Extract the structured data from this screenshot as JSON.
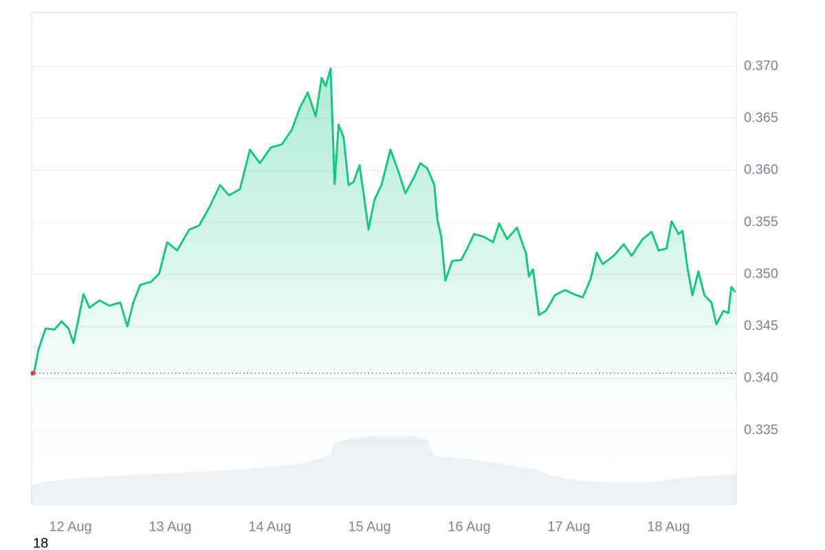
{
  "chart_data": {
    "type": "line",
    "x": [
      11.63,
      11.68,
      11.75,
      11.84,
      11.91,
      11.98,
      12.03,
      12.08,
      12.13,
      12.19,
      12.29,
      12.39,
      12.5,
      12.57,
      12.63,
      12.7,
      12.81,
      12.89,
      12.97,
      13.07,
      13.19,
      13.29,
      13.39,
      13.5,
      13.59,
      13.7,
      13.8,
      13.9,
      14.01,
      14.12,
      14.22,
      14.3,
      14.38,
      14.46,
      14.52,
      14.56,
      14.61,
      14.65,
      14.69,
      14.74,
      14.79,
      14.84,
      14.9,
      14.94,
      14.99,
      15.05,
      15.12,
      15.21,
      15.29,
      15.36,
      15.45,
      15.51,
      15.58,
      15.65,
      15.68,
      15.72,
      15.76,
      15.83,
      15.92,
      15.98,
      16.05,
      16.15,
      16.24,
      16.3,
      16.38,
      16.48,
      16.57,
      16.6,
      16.64,
      16.7,
      16.77,
      16.86,
      16.96,
      17.05,
      17.14,
      17.22,
      17.28,
      17.34,
      17.45,
      17.55,
      17.63,
      17.74,
      17.83,
      17.9,
      17.98,
      18.03,
      18.1,
      18.14,
      18.19,
      18.24,
      18.3,
      18.36,
      18.43,
      18.48,
      18.55,
      18.6,
      18.63,
      18.67
    ],
    "values": [
      0.3404,
      0.3428,
      0.3448,
      0.3447,
      0.3455,
      0.3448,
      0.3434,
      0.3457,
      0.3481,
      0.3468,
      0.3475,
      0.347,
      0.3473,
      0.345,
      0.3473,
      0.349,
      0.3493,
      0.3501,
      0.3531,
      0.3523,
      0.3543,
      0.3547,
      0.3564,
      0.3586,
      0.3576,
      0.3582,
      0.362,
      0.3607,
      0.3622,
      0.3625,
      0.3639,
      0.366,
      0.3675,
      0.3652,
      0.3689,
      0.3681,
      0.3698,
      0.3587,
      0.3644,
      0.3632,
      0.3586,
      0.3589,
      0.3605,
      0.3578,
      0.3543,
      0.3572,
      0.3586,
      0.362,
      0.3599,
      0.3578,
      0.3594,
      0.3607,
      0.3602,
      0.3586,
      0.3553,
      0.3536,
      0.3494,
      0.3513,
      0.3514,
      0.3525,
      0.3539,
      0.3536,
      0.3531,
      0.3549,
      0.3534,
      0.3545,
      0.352,
      0.3498,
      0.3505,
      0.3461,
      0.3465,
      0.348,
      0.3485,
      0.3481,
      0.3478,
      0.3496,
      0.3521,
      0.351,
      0.3518,
      0.3529,
      0.3518,
      0.3534,
      0.3541,
      0.3523,
      0.3525,
      0.3551,
      0.3539,
      0.3542,
      0.3506,
      0.348,
      0.3503,
      0.348,
      0.3473,
      0.3452,
      0.3465,
      0.3463,
      0.3488,
      0.3483
    ],
    "color": "#16c784",
    "baseline": 0.3405,
    "baseline_color": "#ea3943",
    "xlim": [
      11.61,
      18.68
    ],
    "xticks": [
      {
        "value": 12,
        "label": "12 Aug"
      },
      {
        "value": 13,
        "label": "13 Aug"
      },
      {
        "value": 14,
        "label": "14 Aug"
      },
      {
        "value": 15,
        "label": "15 Aug"
      },
      {
        "value": 16,
        "label": "16 Aug"
      },
      {
        "value": 17,
        "label": "17 Aug"
      },
      {
        "value": 18,
        "label": "18 Aug"
      }
    ],
    "ylim": [
      0.3278,
      0.3752
    ],
    "yticks": [
      0.335,
      {
        "value": 0.34,
        "label": "0.340"
      },
      0.345,
      {
        "value": 0.35,
        "label": "0.350"
      },
      0.355,
      {
        "value": 0.36,
        "label": "0.360"
      },
      0.365,
      {
        "value": 0.37,
        "label": "0.370"
      }
    ],
    "grid": true,
    "footer_text": "18"
  }
}
